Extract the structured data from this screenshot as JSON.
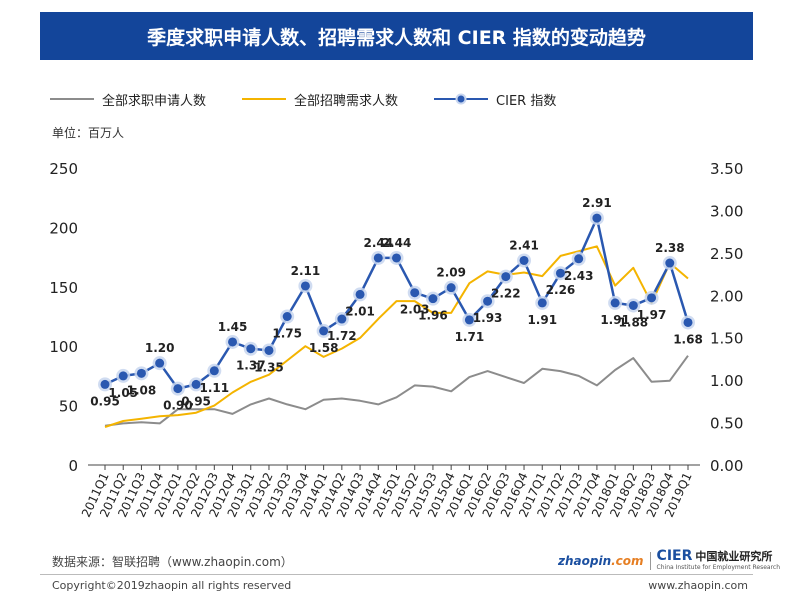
{
  "header": {
    "title": "季度求职申请人数、招聘需求人数和 CIER 指数的变动趋势"
  },
  "legend": {
    "applicants": "全部求职申请人数",
    "demand": "全部招聘需求人数",
    "cier": "CIER 指数"
  },
  "unit_label": "单位：百万人",
  "colors": {
    "header_bg": "#13459a",
    "applicants": "#8c8c8c",
    "demand": "#f4b400",
    "cier": "#2a58b0"
  },
  "chart_data": {
    "type": "line",
    "x": [
      "2011Q1",
      "2011Q2",
      "2011Q3",
      "2011Q4",
      "2012Q1",
      "2012Q2",
      "2012Q3",
      "2012Q4",
      "2013Q1",
      "2013Q2",
      "2013Q3",
      "2013Q4",
      "2014Q1",
      "2014Q2",
      "2014Q3",
      "2014Q4",
      "2015Q1",
      "2015Q2",
      "2015Q3",
      "2015Q4",
      "2016Q1",
      "2016Q2",
      "2016Q3",
      "2016Q4",
      "2017Q1",
      "2017Q2",
      "2017Q3",
      "2017Q4",
      "2018Q1",
      "2018Q2",
      "2018Q3",
      "2018Q4",
      "2019Q1"
    ],
    "y_left": {
      "range": [
        0,
        250
      ],
      "ticks": [
        "0",
        "50",
        "100",
        "150",
        "200",
        "250"
      ]
    },
    "y_right": {
      "range": [
        0,
        3.5
      ],
      "ticks": [
        "0.00",
        "0.50",
        "1.00",
        "1.50",
        "2.00",
        "2.50",
        "3.00",
        "3.50"
      ]
    },
    "series": [
      {
        "name": "全部求职申请人数",
        "axis": "left",
        "values": [
          33,
          35,
          36,
          35,
          47,
          47,
          47,
          43,
          51,
          56,
          51,
          47,
          55,
          56,
          54,
          51,
          57,
          67,
          66,
          62,
          74,
          79,
          74,
          69,
          81,
          79,
          75,
          67,
          80,
          90,
          70,
          71,
          92
        ]
      },
      {
        "name": "全部招聘需求人数",
        "axis": "left",
        "values": [
          32,
          37,
          39,
          41,
          42,
          44,
          50,
          61,
          70,
          76,
          88,
          100,
          91,
          98,
          107,
          123,
          138,
          138,
          128,
          128,
          153,
          163,
          160,
          162,
          159,
          176,
          180,
          184,
          151,
          166,
          136,
          170,
          157
        ]
      },
      {
        "name": "CIER 指数",
        "axis": "right",
        "values": [
          0.95,
          1.05,
          1.08,
          1.2,
          0.9,
          0.95,
          1.11,
          1.45,
          1.37,
          1.35,
          1.75,
          2.11,
          1.58,
          1.72,
          2.01,
          2.44,
          2.44,
          2.03,
          1.96,
          2.09,
          1.71,
          1.93,
          2.22,
          2.41,
          1.91,
          2.26,
          2.43,
          2.91,
          1.91,
          1.88,
          1.97,
          2.38,
          1.68
        ],
        "labels": [
          "0.95",
          "1.05",
          "1.08",
          "1.20",
          "0.90",
          "0.95",
          "1.11",
          "1.45",
          "1.37",
          "1.35",
          "1.75",
          "2.11",
          "1.58",
          "1.72",
          "2.01",
          "2.44",
          "2.44",
          "2.03",
          "1.96",
          "2.09",
          "1.71",
          "1.93",
          "2.22",
          "2.41",
          "1.91",
          "2.26",
          "2.43",
          "2.91",
          "1.91",
          "1.88",
          "1.97",
          "2.38",
          "1.68"
        ]
      }
    ],
    "grid": false,
    "legend_position": "top-left"
  },
  "footer": {
    "source": "数据来源：智联招聘（www.zhaopin.com）",
    "copyright": "Copyright©2019zhaopin all rights reserved",
    "website": "www.zhaopin.com",
    "logo_zhaopin_word": "zhaopin",
    "logo_zhaopin_domain": ".com",
    "logo_cier": "CIER",
    "logo_cier_cn": "中国就业研究所",
    "logo_cier_en": "China Institute for Employment Research"
  }
}
